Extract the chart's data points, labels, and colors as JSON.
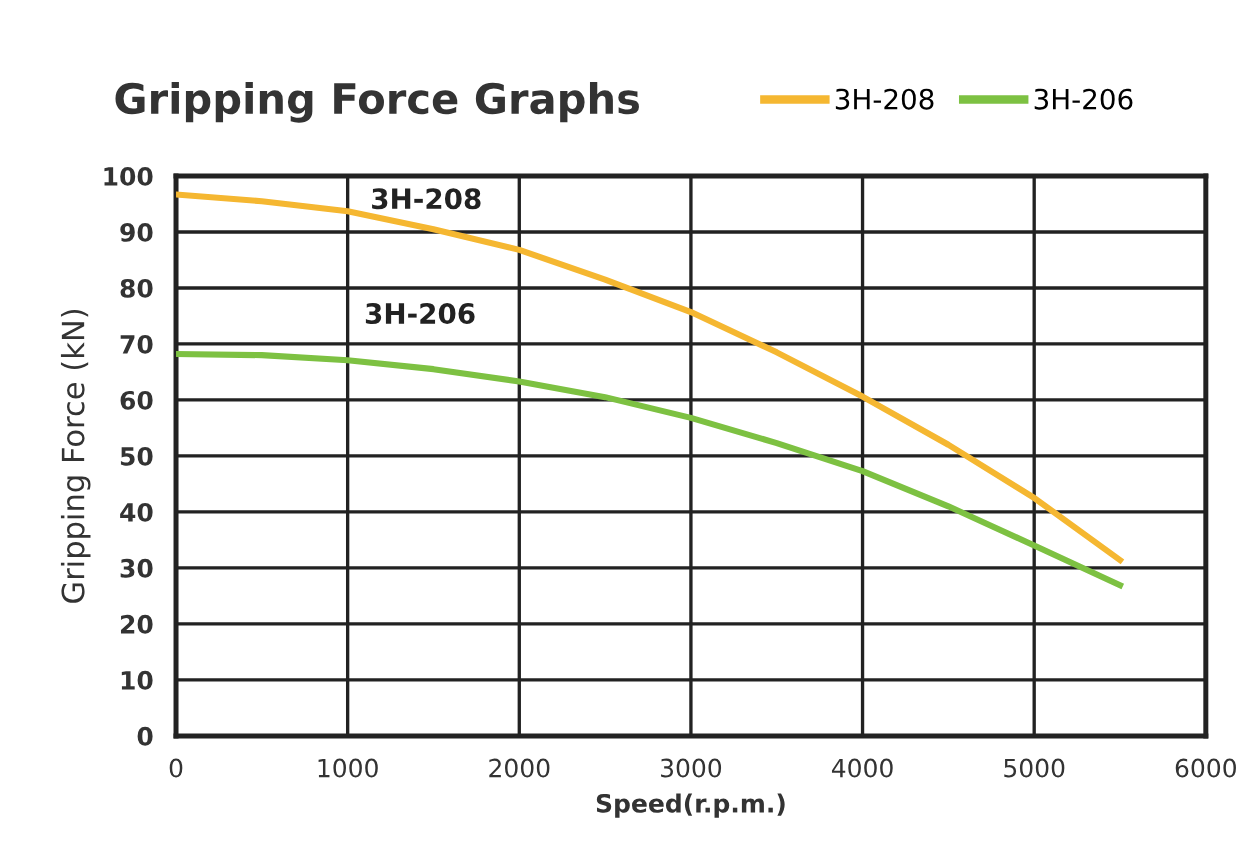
{
  "chart_data": {
    "type": "line",
    "title": "Gripping Force Graphs",
    "xlabel": "Speed(r.p.m.)",
    "ylabel": "Gripping Force (kN)",
    "x": [
      0,
      500,
      1000,
      1500,
      2000,
      2500,
      3000,
      3500,
      4000,
      4500,
      5000,
      5500
    ],
    "series": [
      {
        "name": "3H-208",
        "color": "#f5b731",
        "values": [
          96.7,
          95.5,
          93.7,
          90.5,
          86.8,
          81.5,
          75.7,
          68.5,
          60.6,
          52,
          42.5,
          31.4
        ]
      },
      {
        "name": "3H-206",
        "color": "#7dc142",
        "values": [
          68.2,
          68,
          67.1,
          65.5,
          63.3,
          60.5,
          56.8,
          52.3,
          47.3,
          41,
          34,
          26.9
        ]
      }
    ],
    "annotations": [
      "3H-208",
      "3H-206"
    ],
    "xlim": [
      0,
      6000
    ],
    "xticks": [
      0,
      1000,
      2000,
      3000,
      4000,
      5000,
      6000
    ],
    "ylim": [
      0,
      100
    ],
    "yticks": [
      0,
      10,
      20,
      30,
      40,
      50,
      60,
      70,
      80,
      90,
      100
    ],
    "grid": true,
    "legend": "top right",
    "marker": "none",
    "line_style": "solid"
  }
}
